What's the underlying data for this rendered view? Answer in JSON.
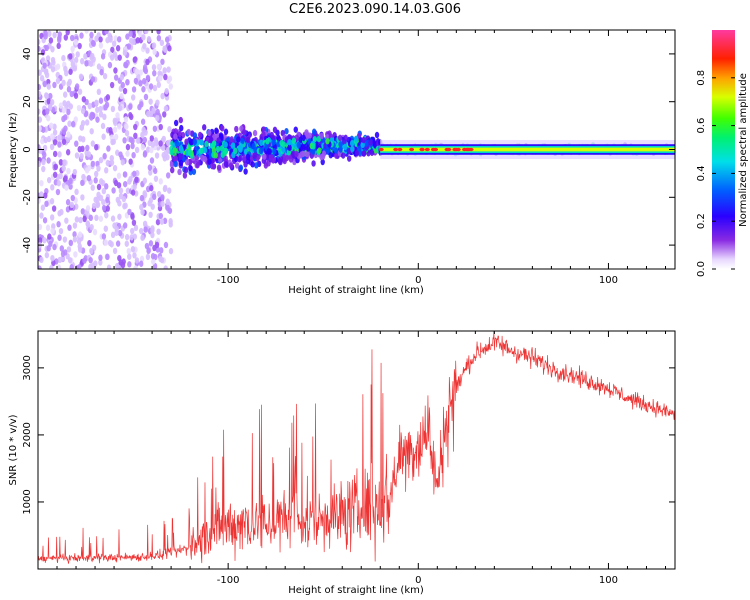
{
  "title": "C2E6.2023.090.14.03.G06",
  "chart_data": [
    {
      "type": "heatmap",
      "xlabel": "Height of straight line (km)",
      "ylabel": "Frequency (Hz)",
      "xlim": [
        -200,
        135
      ],
      "ylim": [
        -50,
        50
      ],
      "xticks": [
        -100,
        0,
        100
      ],
      "yticks": [
        -40,
        -20,
        0,
        20,
        40
      ],
      "colorbar": {
        "label": "Normalized spectral amplitude",
        "range": [
          0,
          1
        ],
        "ticks": [
          "0.0",
          "0.2",
          "0.4",
          "0.6",
          "0.8"
        ],
        "colormap": "rainbow (white/lavender → violet → blue → cyan → green → yellow → red → pink)"
      },
      "grid": false,
      "description_of_data": "Noisy broadband violet speckle for heights below about -130 km; spread spectrum narrowing toward 0 Hz between -120 and -20 km; narrow stable line at ~0 Hz from -20 km to 135 km",
      "regions": [
        {
          "x_range": [
            -200,
            -130
          ],
          "freq_spread_hz": 50,
          "amplitude": 0.15
        },
        {
          "x_range": [
            -130,
            -20
          ],
          "freq_spread_hz": 10,
          "amplitude": 0.35
        },
        {
          "x_range": [
            -20,
            135
          ],
          "freq_spread_hz": 2,
          "amplitude": 0.5
        }
      ]
    },
    {
      "type": "line",
      "xlabel": "Height of straight line (km)",
      "ylabel": "SNR (10 * v/v)",
      "xlim": [
        -200,
        135
      ],
      "ylim": [
        0,
        3550
      ],
      "xticks": [
        -100,
        0,
        100
      ],
      "yticks": [
        1000,
        2000,
        3000
      ],
      "color": "#ee3333",
      "grid": false,
      "series": [
        {
          "x": [
            -200,
            -180,
            -160,
            -140,
            -130,
            -120,
            -110,
            -100,
            -90,
            -80,
            -70,
            -60,
            -50,
            -40,
            -30,
            -20,
            -15,
            -10,
            -5,
            0,
            5,
            10,
            15,
            20,
            25,
            30,
            35,
            40,
            50,
            60,
            70,
            80,
            90,
            100,
            110,
            120,
            135
          ],
          "y": [
            150,
            160,
            170,
            190,
            230,
            330,
            520,
            650,
            700,
            680,
            720,
            700,
            760,
            800,
            900,
            950,
            1050,
            1700,
            1750,
            1850,
            2100,
            1200,
            2300,
            2700,
            3000,
            3200,
            3300,
            3380,
            3250,
            3150,
            3000,
            2900,
            2800,
            2700,
            2550,
            2450,
            2300
          ]
        }
      ]
    }
  ]
}
